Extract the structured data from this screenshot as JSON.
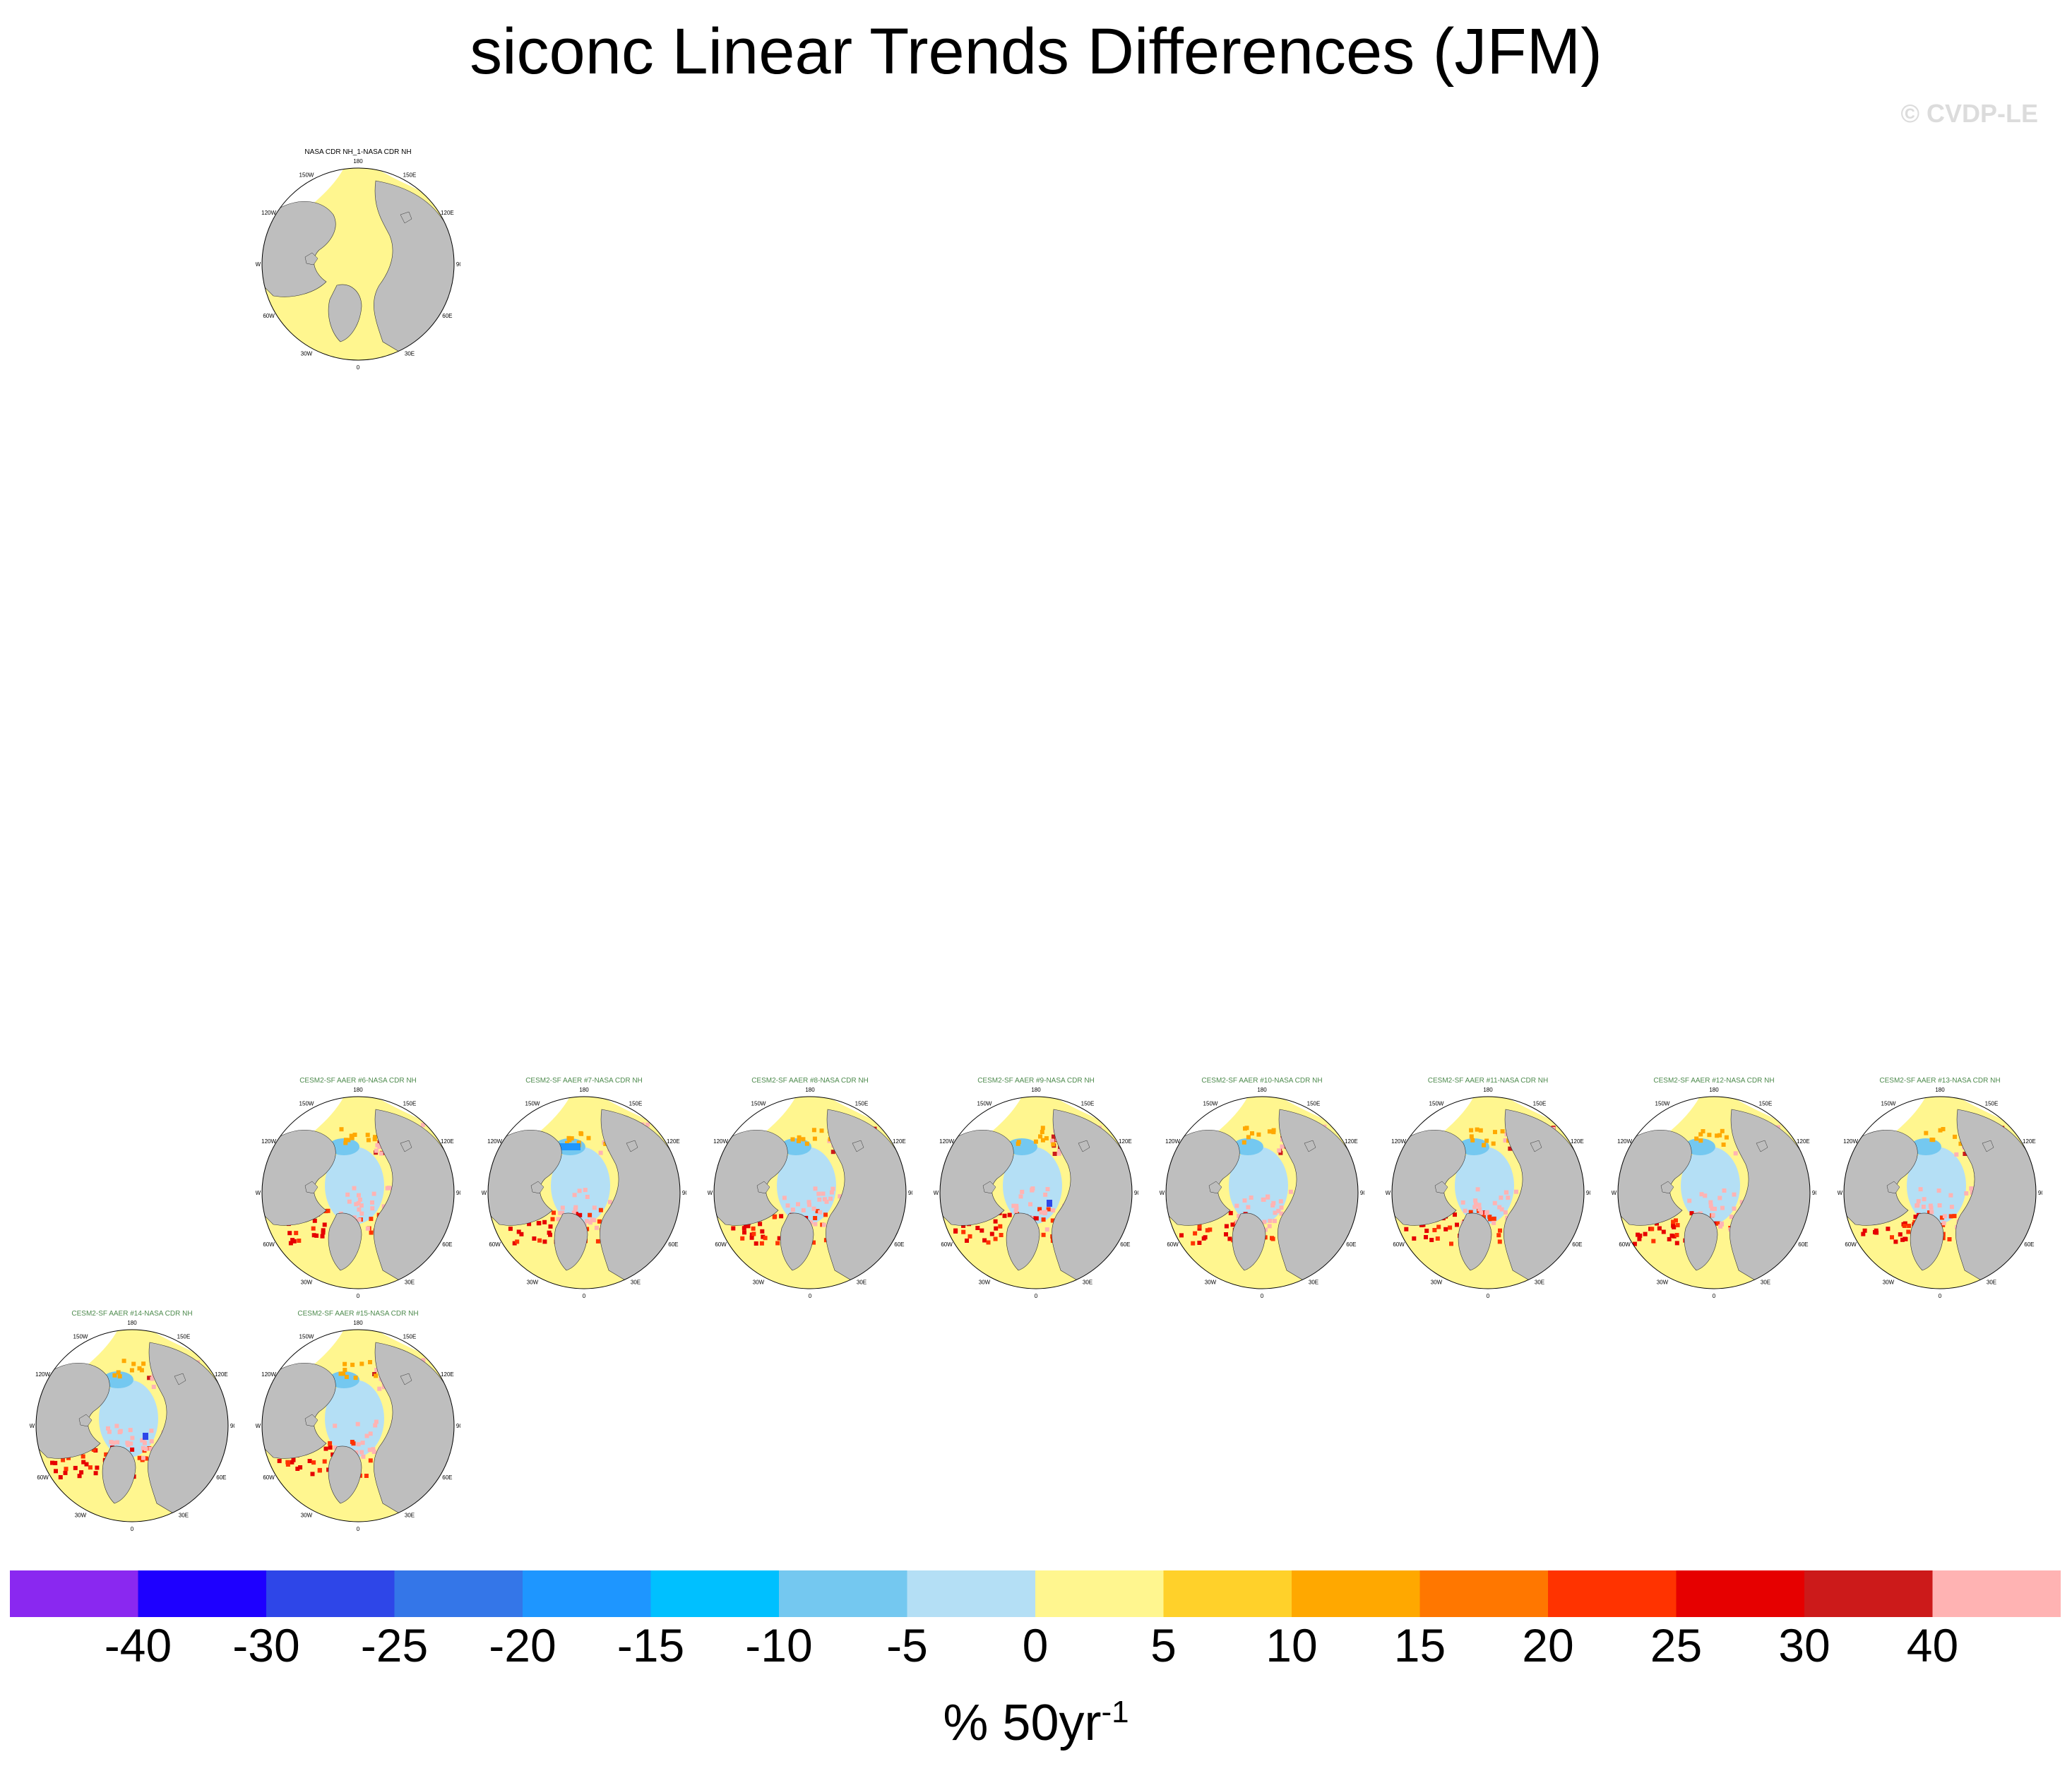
{
  "title": "siconc Linear Trends Differences (JFM)",
  "watermark": "© CVDP-LE",
  "units": {
    "base": "% 50yr",
    "exponent": "-1"
  },
  "longitude_labels": [
    "180",
    "150E",
    "120E",
    "90E",
    "60E",
    "30E",
    "0",
    "30W",
    "60W",
    "90W",
    "120W",
    "150W"
  ],
  "colors": {
    "land": "#bebebe",
    "ocean_default": "#fff68f"
  },
  "colorbar": {
    "colors": [
      "#8a28f0",
      "#1e00ff",
      "#2e46e8",
      "#3476e8",
      "#1e96ff",
      "#00c0ff",
      "#74c8f0",
      "#b4dff5",
      "#fff68f",
      "#ffd12a",
      "#ffa800",
      "#ff7700",
      "#ff3300",
      "#e60000",
      "#cc1a1a",
      "#ffb3b3"
    ],
    "tick_labels": [
      "-40",
      "-30",
      "-25",
      "-20",
      "-15",
      "-10",
      "-5",
      "0",
      "5",
      "10",
      "15",
      "20",
      "25",
      "30",
      "40"
    ]
  },
  "chart_data": {
    "type": "heatmap",
    "projection": "north polar stereographic",
    "panels": [
      {
        "title": "NASA CDR NH_1-NASA CDR NH",
        "kind": "observation"
      },
      {
        "title": "CESM2-SF AAER #6-NASA CDR NH",
        "kind": "model"
      },
      {
        "title": "CESM2-SF AAER #7-NASA CDR NH",
        "kind": "model"
      },
      {
        "title": "CESM2-SF AAER #8-NASA CDR NH",
        "kind": "model"
      },
      {
        "title": "CESM2-SF AAER #9-NASA CDR NH",
        "kind": "model"
      },
      {
        "title": "CESM2-SF AAER #10-NASA CDR NH",
        "kind": "model"
      },
      {
        "title": "CESM2-SF AAER #11-NASA CDR NH",
        "kind": "model"
      },
      {
        "title": "CESM2-SF AAER #12-NASA CDR NH",
        "kind": "model"
      },
      {
        "title": "CESM2-SF AAER #13-NASA CDR NH",
        "kind": "model"
      },
      {
        "title": "CESM2-SF AAER #14-NASA CDR NH",
        "kind": "model"
      },
      {
        "title": "CESM2-SF AAER #15-NASA CDR NH",
        "kind": "model"
      }
    ]
  }
}
